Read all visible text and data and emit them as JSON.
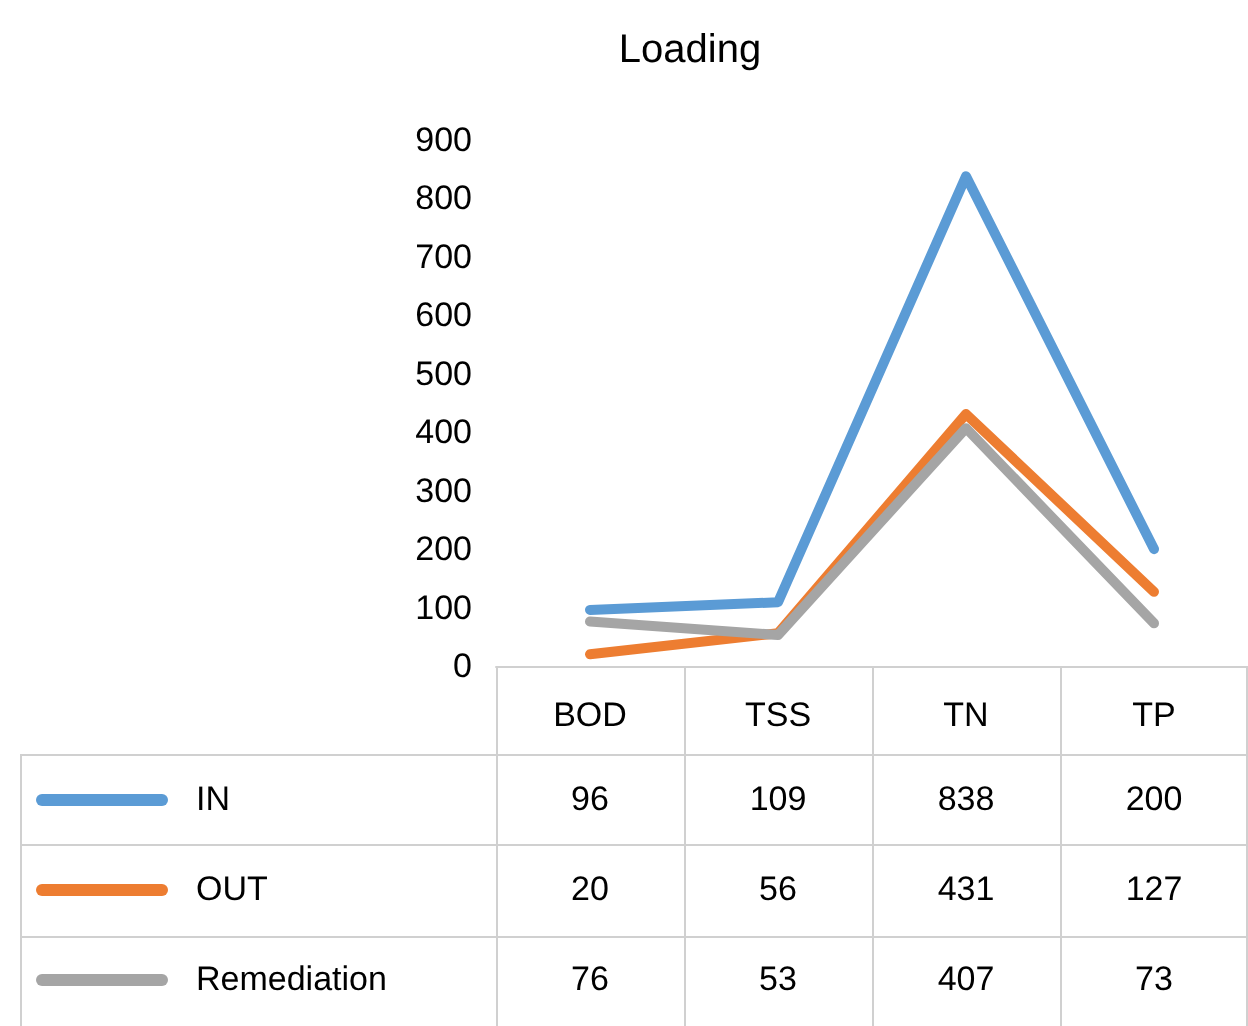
{
  "chart_data": {
    "type": "line",
    "title": "Loading",
    "categories": [
      "BOD",
      "TSS",
      "TN",
      "TP"
    ],
    "series": [
      {
        "name": "IN",
        "color": "#5b9bd5",
        "values": [
          96,
          109,
          838,
          200
        ]
      },
      {
        "name": "OUT",
        "color": "#ed7d31",
        "values": [
          20,
          56,
          431,
          127
        ]
      },
      {
        "name": "Remediation",
        "color": "#a5a5a5",
        "values": [
          76,
          53,
          407,
          73
        ]
      }
    ],
    "ylim": [
      0,
      900
    ],
    "yticks": [
      0,
      100,
      200,
      300,
      400,
      500,
      600,
      700,
      800,
      900
    ],
    "grid": false,
    "legend": "bottom",
    "marker": "none",
    "line_style": "solid",
    "data_labels": true
  }
}
